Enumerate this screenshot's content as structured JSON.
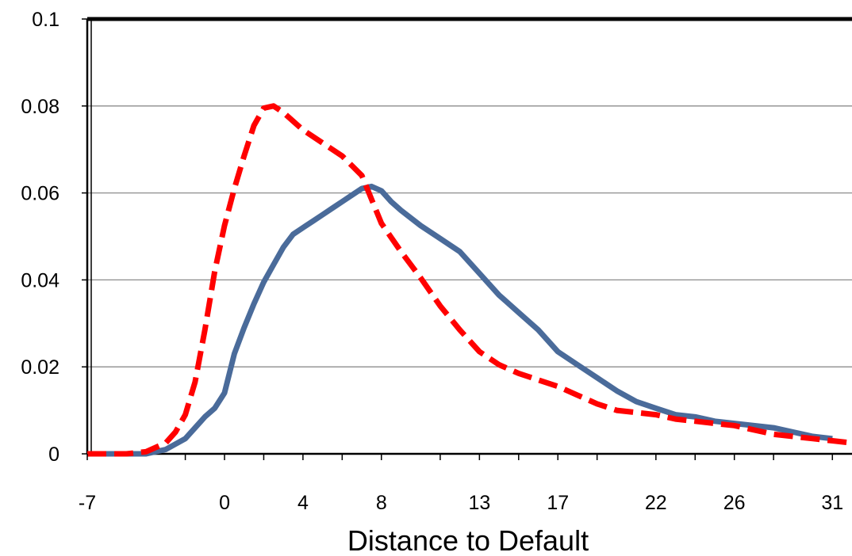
{
  "chart_data": {
    "type": "line",
    "title": "",
    "xlabel": "Distance to Default",
    "ylabel": "",
    "xlim": [
      -7,
      32
    ],
    "ylim": [
      0,
      0.1
    ],
    "grid": true,
    "y_ticks": [
      {
        "value": 0,
        "label": "0"
      },
      {
        "value": 0.02,
        "label": "0.02"
      },
      {
        "value": 0.04,
        "label": "0.04"
      },
      {
        "value": 0.06,
        "label": "0.06"
      },
      {
        "value": 0.08,
        "label": "0.08"
      },
      {
        "value": 0.1,
        "label": "0.1"
      }
    ],
    "x_ticks": [
      {
        "value": -7,
        "label": "-7"
      },
      {
        "value": -2,
        "label": ""
      },
      {
        "value": 0,
        "label": "0"
      },
      {
        "value": 2,
        "label": ""
      },
      {
        "value": 4,
        "label": "4"
      },
      {
        "value": 6,
        "label": ""
      },
      {
        "value": 8,
        "label": "8"
      },
      {
        "value": 11,
        "label": ""
      },
      {
        "value": 13,
        "label": "13"
      },
      {
        "value": 15,
        "label": ""
      },
      {
        "value": 17,
        "label": "17"
      },
      {
        "value": 19,
        "label": ""
      },
      {
        "value": 22,
        "label": "22"
      },
      {
        "value": 24,
        "label": ""
      },
      {
        "value": 26,
        "label": "26"
      },
      {
        "value": 28,
        "label": ""
      },
      {
        "value": 31,
        "label": "31"
      }
    ],
    "series": [
      {
        "color": "#4a6b9a",
        "dash": "solid",
        "x": [
          -7,
          -4,
          -3,
          -2,
          -1.5,
          -1,
          -0.5,
          0,
          0.5,
          1,
          1.5,
          2,
          2.5,
          3,
          3.5,
          4,
          4.5,
          5,
          5.5,
          6,
          6.5,
          7,
          7.5,
          8,
          8.5,
          9,
          10,
          11,
          12,
          13,
          14,
          15,
          16,
          17,
          18,
          19,
          20,
          21,
          22,
          23,
          24,
          25,
          26,
          27,
          28,
          29,
          30,
          31
        ],
        "values": [
          0,
          0,
          0.001,
          0.0035,
          0.006,
          0.0085,
          0.0105,
          0.014,
          0.023,
          0.029,
          0.0345,
          0.0395,
          0.0435,
          0.0475,
          0.0505,
          0.052,
          0.0535,
          0.055,
          0.0565,
          0.058,
          0.0595,
          0.061,
          0.0615,
          0.0605,
          0.058,
          0.056,
          0.0525,
          0.0495,
          0.0465,
          0.0415,
          0.0365,
          0.0325,
          0.0285,
          0.0235,
          0.0205,
          0.0175,
          0.0145,
          0.012,
          0.0105,
          0.009,
          0.0085,
          0.0075,
          0.007,
          0.0065,
          0.006,
          0.005,
          0.004,
          0.0035
        ]
      },
      {
        "color": "#ff0000",
        "dash": "dashed",
        "x": [
          -7,
          -5,
          -4,
          -3,
          -2.5,
          -2,
          -1.5,
          -1,
          -0.5,
          0,
          0.5,
          1,
          1.5,
          2,
          2.5,
          3,
          3.5,
          4,
          5,
          6,
          7,
          8,
          9,
          10,
          11,
          12,
          13,
          14,
          15,
          16,
          17,
          18,
          19,
          20,
          21,
          22,
          23,
          24,
          25,
          26,
          27,
          28,
          29,
          30,
          31,
          32
        ],
        "values": [
          0,
          0,
          0.0005,
          0.0025,
          0.005,
          0.009,
          0.0165,
          0.0285,
          0.042,
          0.0525,
          0.061,
          0.0685,
          0.0755,
          0.0795,
          0.08,
          0.0785,
          0.0765,
          0.0745,
          0.0715,
          0.0685,
          0.064,
          0.053,
          0.0465,
          0.0405,
          0.034,
          0.0285,
          0.0235,
          0.0205,
          0.0185,
          0.017,
          0.0155,
          0.0135,
          0.0115,
          0.01,
          0.0095,
          0.009,
          0.008,
          0.0075,
          0.007,
          0.0065,
          0.0055,
          0.0045,
          0.004,
          0.0035,
          0.003,
          0.0025
        ]
      }
    ]
  }
}
